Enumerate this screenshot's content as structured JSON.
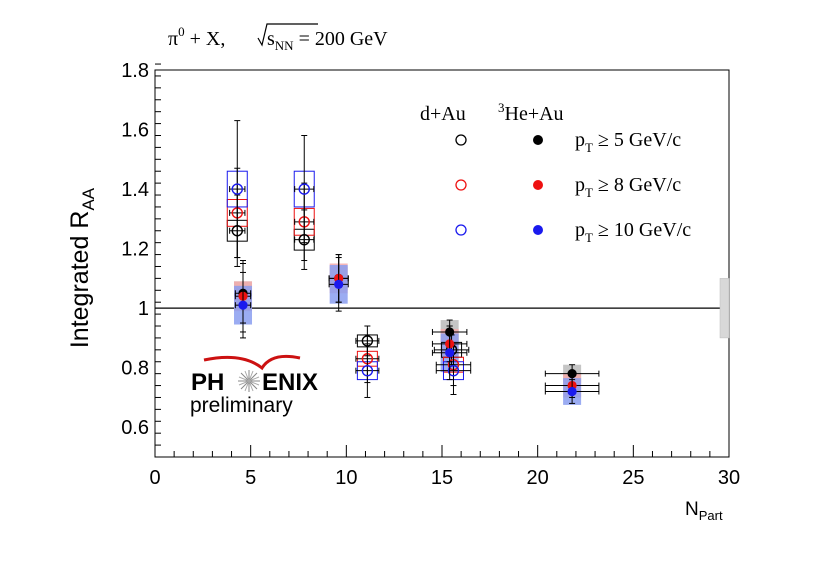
{
  "chart_data": {
    "type": "scatter",
    "title": {
      "pre": "π",
      "sup": "0",
      "mid": " + X, ",
      "root": "s",
      "root_sub": "NN",
      "post": " = 200 GeV"
    },
    "ylabel": {
      "main": "Integrated R",
      "sub": "AA"
    },
    "xlabel": {
      "main": "N",
      "sub": "Part"
    },
    "xlim": [
      0,
      30
    ],
    "ylim": [
      0.5,
      1.8
    ],
    "x_ticks": [
      0,
      5,
      10,
      15,
      20,
      25,
      30
    ],
    "y_ticks": [
      {
        "value": 0.6,
        "label": "0.6"
      },
      {
        "value": 0.8,
        "label": "0.8"
      },
      {
        "value": 1.0,
        "label": "1"
      },
      {
        "value": 1.2,
        "label": "1.2"
      },
      {
        "value": 1.4,
        "label": "1.4"
      },
      {
        "value": 1.6,
        "label": "1.6"
      },
      {
        "value": 1.8,
        "label": "1.8"
      }
    ],
    "reference_line": 1.0,
    "global_uncertainty": 0.1,
    "legend": {
      "col1": "d+Au",
      "col2_sup": "3",
      "col2": "He+Au",
      "rows": [
        {
          "p": "p",
          "sub": "T",
          "text": " ≥ 5 GeV/c",
          "color": "#000000"
        },
        {
          "p": "p",
          "sub": "T",
          "text": " ≥ 8 GeV/c",
          "color": "#ee1111"
        },
        {
          "p": "p",
          "sub": "T",
          "text": " ≥ 10 GeV/c",
          "color": "#1a1aee"
        }
      ]
    },
    "series": [
      {
        "name": "d+Au pT ≥ 5 GeV/c",
        "system": "dAu",
        "color": "#000000",
        "fill": "#bbbbbb",
        "points": [
          {
            "x": 4.3,
            "y": 1.26,
            "xerr": 0.4,
            "yerr": 0.12,
            "sys": 0.035
          },
          {
            "x": 7.8,
            "y": 1.23,
            "xerr": 0.5,
            "yerr": 0.1,
            "sys": 0.035
          },
          {
            "x": 11.1,
            "y": 0.89,
            "xerr": 0.6,
            "yerr": 0.05,
            "sys": 0.02
          },
          {
            "x": 15.5,
            "y": 0.86,
            "xerr": 0.9,
            "yerr": 0.05,
            "sys": 0.025
          }
        ]
      },
      {
        "name": "d+Au pT ≥ 8 GeV/c",
        "system": "dAu",
        "color": "#ee1111",
        "fill": "#f4aaaa",
        "points": [
          {
            "x": 4.3,
            "y": 1.32,
            "xerr": 0.4,
            "yerr": 0.15,
            "sys": 0.045
          },
          {
            "x": 7.8,
            "y": 1.29,
            "xerr": 0.5,
            "yerr": 0.13,
            "sys": 0.045
          },
          {
            "x": 11.1,
            "y": 0.83,
            "xerr": 0.6,
            "yerr": 0.08,
            "sys": 0.025
          },
          {
            "x": 15.6,
            "y": 0.81,
            "xerr": 0.9,
            "yerr": 0.07,
            "sys": 0.025
          }
        ]
      },
      {
        "name": "d+Au pT ≥ 10 GeV/c",
        "system": "dAu",
        "color": "#1a1aee",
        "fill": "#aab8ff",
        "points": [
          {
            "x": 4.3,
            "y": 1.4,
            "xerr": 0.4,
            "yerr": 0.23,
            "sys": 0.06
          },
          {
            "x": 7.8,
            "y": 1.4,
            "xerr": 0.5,
            "yerr": 0.18,
            "sys": 0.06
          },
          {
            "x": 11.1,
            "y": 0.79,
            "xerr": 0.6,
            "yerr": 0.09,
            "sys": 0.03
          },
          {
            "x": 15.6,
            "y": 0.79,
            "xerr": 0.9,
            "yerr": 0.08,
            "sys": 0.03
          }
        ]
      },
      {
        "name": "3He+Au pT ≥ 5 GeV/c",
        "system": "HeAu",
        "color": "#000000",
        "fill": "#bbbbbb",
        "points": [
          {
            "x": 4.6,
            "y": 1.05,
            "xerr": 0.4,
            "yerr": 0.1,
            "sys": 0.04
          },
          {
            "x": 9.6,
            "y": 1.1,
            "xerr": 0.5,
            "yerr": 0.08,
            "sys": 0.04
          },
          {
            "x": 15.4,
            "y": 0.92,
            "xerr": 0.9,
            "yerr": 0.04,
            "sys": 0.04
          },
          {
            "x": 21.8,
            "y": 0.78,
            "xerr": 1.4,
            "yerr": 0.03,
            "sys": 0.03
          }
        ]
      },
      {
        "name": "3He+Au pT ≥ 8 GeV/c",
        "system": "HeAu",
        "color": "#ee1111",
        "fill": "#f4aaaa",
        "points": [
          {
            "x": 4.6,
            "y": 1.04,
            "xerr": 0.4,
            "yerr": 0.12,
            "sys": 0.05
          },
          {
            "x": 9.6,
            "y": 1.1,
            "xerr": 0.5,
            "yerr": 0.08,
            "sys": 0.05
          },
          {
            "x": 15.4,
            "y": 0.88,
            "xerr": 0.9,
            "yerr": 0.06,
            "sys": 0.05
          },
          {
            "x": 21.8,
            "y": 0.74,
            "xerr": 1.4,
            "yerr": 0.04,
            "sys": 0.04
          }
        ]
      },
      {
        "name": "3He+Au pT ≥ 10 GeV/c",
        "system": "HeAu",
        "color": "#1a1aee",
        "fill": "#8a9ef0",
        "points": [
          {
            "x": 4.6,
            "y": 1.01,
            "xerr": 0.4,
            "yerr": 0.11,
            "sys": 0.065
          },
          {
            "x": 9.6,
            "y": 1.08,
            "xerr": 0.5,
            "yerr": 0.09,
            "sys": 0.065
          },
          {
            "x": 15.4,
            "y": 0.85,
            "xerr": 0.9,
            "yerr": 0.09,
            "sys": 0.065
          },
          {
            "x": 21.8,
            "y": 0.72,
            "xerr": 1.4,
            "yerr": 0.04,
            "sys": 0.045
          }
        ]
      }
    ]
  },
  "logo": {
    "word_left": "PH",
    "word_right": "ENIX",
    "tagline": "preliminary",
    "accent": "#cc1111"
  }
}
